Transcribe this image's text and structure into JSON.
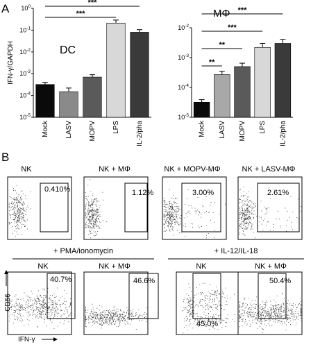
{
  "figure": {
    "panel_a_letter": "A",
    "panel_b_letter": "B"
  },
  "chart_data": [
    {
      "type": "bar",
      "title": "DC",
      "ylabel": "IFN-γ/GAPDH",
      "yscale": "log",
      "ylim": [
        1e-05,
        1
      ],
      "ytick_labels": [
        "10-5",
        "10-4",
        "10-3",
        "10-2",
        "10-1",
        "100"
      ],
      "categories": [
        "Mock",
        "LASV",
        "MOPV",
        "LPS",
        "IL-2/pha"
      ],
      "values": [
        0.00032,
        0.00015,
        0.0007,
        0.21,
        0.08
      ],
      "errors": [
        8e-05,
        7e-05,
        0.0002,
        0.08,
        0.025
      ],
      "colors": [
        "#0a0a0a",
        "#8a8a8a",
        "#5a5a5a",
        "#d8d8d8",
        "#3a3a3a"
      ],
      "significance": [
        {
          "from": "Mock",
          "to": "IL-2/pha",
          "label": "***"
        },
        {
          "from": "Mock",
          "to": "LPS",
          "label": "***"
        }
      ]
    },
    {
      "type": "bar",
      "title": "MΦ",
      "ylabel": "",
      "yscale": "log",
      "ylim": [
        1e-05,
        0.01
      ],
      "ytick_labels": [
        "10-5",
        "10-4",
        "10-3",
        "10-2"
      ],
      "categories": [
        "Mock",
        "LASV",
        "MOPV",
        "LPS",
        "IL-2/pha"
      ],
      "values": [
        3.2e-05,
        0.00027,
        0.0005,
        0.0022,
        0.003
      ],
      "errors": [
        7e-06,
        8e-05,
        0.00015,
        0.0008,
        0.0011
      ],
      "colors": [
        "#0a0a0a",
        "#a8a8a8",
        "#5a5a5a",
        "#d8d8d8",
        "#3a3a3a"
      ],
      "significance": [
        {
          "from": "Mock",
          "to": "IL-2/pha",
          "label": "***"
        },
        {
          "from": "Mock",
          "to": "LPS",
          "label": "***"
        },
        {
          "from": "Mock",
          "to": "MOPV",
          "label": "**"
        },
        {
          "from": "Mock",
          "to": "LASV",
          "label": "**"
        }
      ]
    },
    {
      "type": "scatter",
      "xlabel": "IFN-γ",
      "ylabel": "CD56",
      "group_labels": [
        "+ PMA/ionomycin",
        "+ IL-12/IL-18"
      ],
      "plots": [
        {
          "title": "NK",
          "gate_percent": "0.410%"
        },
        {
          "title": "NK + MΦ",
          "gate_percent": "1.12%"
        },
        {
          "title": "NK + MOPV-MΦ",
          "gate_percent": "3.00%"
        },
        {
          "title": "NK + LASV-MΦ",
          "gate_percent": "2.61%"
        },
        {
          "title": "NK",
          "gate_percent": "40.7%"
        },
        {
          "title": "NK + MΦ",
          "gate_percent": "46.6%"
        },
        {
          "title": "NK",
          "gate_percent": "45.0%"
        },
        {
          "title": "NK + MΦ",
          "gate_percent": "50.4%"
        }
      ]
    }
  ]
}
